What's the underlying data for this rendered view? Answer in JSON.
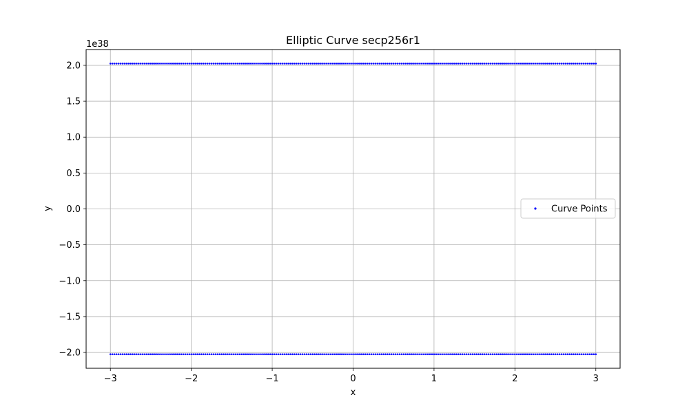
{
  "chart_data": {
    "type": "scatter",
    "title": "Elliptic Curve secp256r1",
    "xlabel": "x",
    "ylabel": "y",
    "y_offset_text": "1e38",
    "xlim": [
      -3.3,
      3.3
    ],
    "ylim": [
      -2.22,
      2.22
    ],
    "xticks": [
      -3,
      -2,
      -1,
      0,
      1,
      2,
      3
    ],
    "xtick_labels": [
      "−3",
      "−2",
      "−1",
      "0",
      "1",
      "2",
      "3"
    ],
    "yticks": [
      -2.0,
      -1.5,
      -1.0,
      -0.5,
      0.0,
      0.5,
      1.0,
      1.5,
      2.0
    ],
    "ytick_labels": [
      "−2.0",
      "−1.5",
      "−1.0",
      "−0.5",
      "0.0",
      "0.5",
      "1.0",
      "1.5",
      "2.0"
    ],
    "grid": true,
    "legend_position": "center-right",
    "series": [
      {
        "name": "Curve Points",
        "color": "#0000ff",
        "x_range": [
          -3,
          3
        ],
        "y_values": [
          2.025,
          -2.025
        ],
        "marker": "point"
      }
    ]
  }
}
